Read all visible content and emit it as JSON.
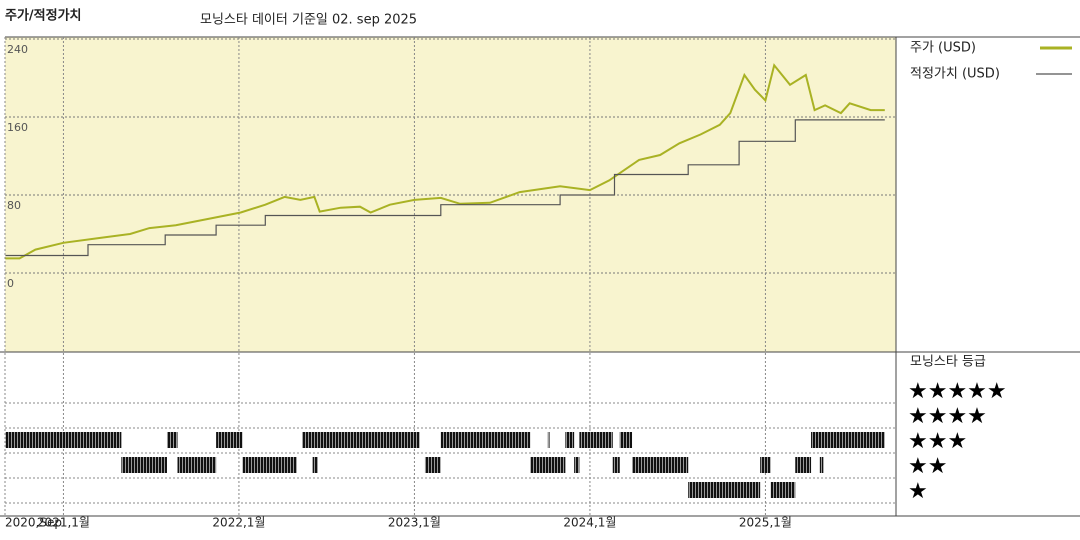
{
  "chart_data": [
    {
      "type": "line",
      "title": "주가/적정가치",
      "subtitle": "모닝스타 데이터 기준일 02. sep 2025",
      "xlim": [
        2020.667,
        2025.744
      ],
      "ylim": [
        -81,
        242
      ],
      "yticks": [
        0,
        80,
        160,
        240
      ],
      "grid": true,
      "background": "#f8f4cf",
      "series": [
        {
          "name": "주가 (USD)",
          "color": "#a9b224",
          "x": [
            2020.67,
            2020.75,
            2020.84,
            2021.0,
            2021.21,
            2021.38,
            2021.49,
            2021.64,
            2021.84,
            2022.01,
            2022.15,
            2022.26,
            2022.35,
            2022.43,
            2022.46,
            2022.58,
            2022.69,
            2022.75,
            2022.86,
            2023.0,
            2023.15,
            2023.26,
            2023.43,
            2023.6,
            2023.83,
            2024.0,
            2024.11,
            2024.2,
            2024.28,
            2024.4,
            2024.51,
            2024.63,
            2024.74,
            2024.8,
            2024.88,
            2024.94,
            2025.0,
            2025.05,
            2025.14,
            2025.23,
            2025.28,
            2025.34,
            2025.43,
            2025.48,
            2025.6,
            2025.68
          ],
          "values": [
            15,
            15,
            24,
            31,
            36,
            40,
            46,
            49,
            56,
            62,
            70,
            78,
            75,
            78,
            63,
            67,
            68,
            62,
            70,
            75,
            77,
            71,
            72,
            83,
            89,
            85,
            95,
            106,
            116,
            121,
            133,
            142,
            152,
            164,
            203,
            188,
            177,
            213,
            193,
            203,
            167,
            172,
            164,
            174,
            167,
            167
          ]
        },
        {
          "name": "적정가치 (USD)",
          "color": "#555555",
          "x": [
            2020.67,
            2021.14,
            2021.14,
            2021.58,
            2021.58,
            2021.87,
            2021.87,
            2022.15,
            2022.15,
            2023.15,
            2023.15,
            2023.83,
            2023.83,
            2024.14,
            2024.14,
            2024.56,
            2024.56,
            2024.85,
            2024.85,
            2025.17,
            2025.17,
            2025.68
          ],
          "values": [
            18,
            18,
            29,
            29,
            39,
            39,
            49,
            49,
            59,
            59,
            70,
            70,
            80,
            80,
            101,
            101,
            111,
            111,
            135,
            135,
            157,
            157
          ]
        }
      ]
    },
    {
      "type": "timeline",
      "title": "모닝스타 등급",
      "xlim": [
        2020.667,
        2025.744
      ],
      "xticks": [
        {
          "value": 2020.667,
          "label": "2020,Sep"
        },
        {
          "value": 2021,
          "label": "2021,1월"
        },
        {
          "value": 2022,
          "label": "2022,1월"
        },
        {
          "value": 2023,
          "label": "2023,1월"
        },
        {
          "value": 2024,
          "label": "2024,1월"
        },
        {
          "value": 2025,
          "label": "2025,1월"
        }
      ],
      "levels": [
        {
          "value": 5,
          "label": "★★★★★"
        },
        {
          "value": 4,
          "label": "★★★★"
        },
        {
          "value": 3,
          "label": "★★★"
        },
        {
          "value": 2,
          "label": "★★"
        },
        {
          "value": 1,
          "label": "★"
        }
      ],
      "periods": [
        {
          "stars": 3,
          "start": 2020.67,
          "end": 2021.33
        },
        {
          "stars": 2,
          "start": 2021.33,
          "end": 2021.59
        },
        {
          "stars": 3,
          "start": 2021.59,
          "end": 2021.65
        },
        {
          "stars": 2,
          "start": 2021.65,
          "end": 2021.87
        },
        {
          "stars": 3,
          "start": 2021.87,
          "end": 2022.02
        },
        {
          "stars": 2,
          "start": 2022.02,
          "end": 2022.33
        },
        {
          "stars": 3,
          "start": 2022.36,
          "end": 2023.03
        },
        {
          "stars": 2,
          "start": 2022.42,
          "end": 2022.45
        },
        {
          "stars": 2,
          "start": 2023.06,
          "end": 2023.15
        },
        {
          "stars": 3,
          "start": 2023.15,
          "end": 2023.66
        },
        {
          "stars": 2,
          "start": 2023.66,
          "end": 2023.86
        },
        {
          "stars": 3,
          "start": 2023.76,
          "end": 2023.77
        },
        {
          "stars": 3,
          "start": 2023.86,
          "end": 2023.91
        },
        {
          "stars": 2,
          "start": 2023.91,
          "end": 2023.94
        },
        {
          "stars": 3,
          "start": 2023.94,
          "end": 2024.13
        },
        {
          "stars": 2,
          "start": 2024.13,
          "end": 2024.17
        },
        {
          "stars": 3,
          "start": 2024.17,
          "end": 2024.24
        },
        {
          "stars": 2,
          "start": 2024.24,
          "end": 2024.56
        },
        {
          "stars": 1,
          "start": 2024.56,
          "end": 2024.97
        },
        {
          "stars": 2,
          "start": 2024.97,
          "end": 2025.03
        },
        {
          "stars": 1,
          "start": 2025.03,
          "end": 2025.17
        },
        {
          "stars": 2,
          "start": 2025.17,
          "end": 2025.26
        },
        {
          "stars": 3,
          "start": 2025.26,
          "end": 2025.68
        },
        {
          "stars": 2,
          "start": 2025.31,
          "end": 2025.33
        }
      ]
    }
  ]
}
